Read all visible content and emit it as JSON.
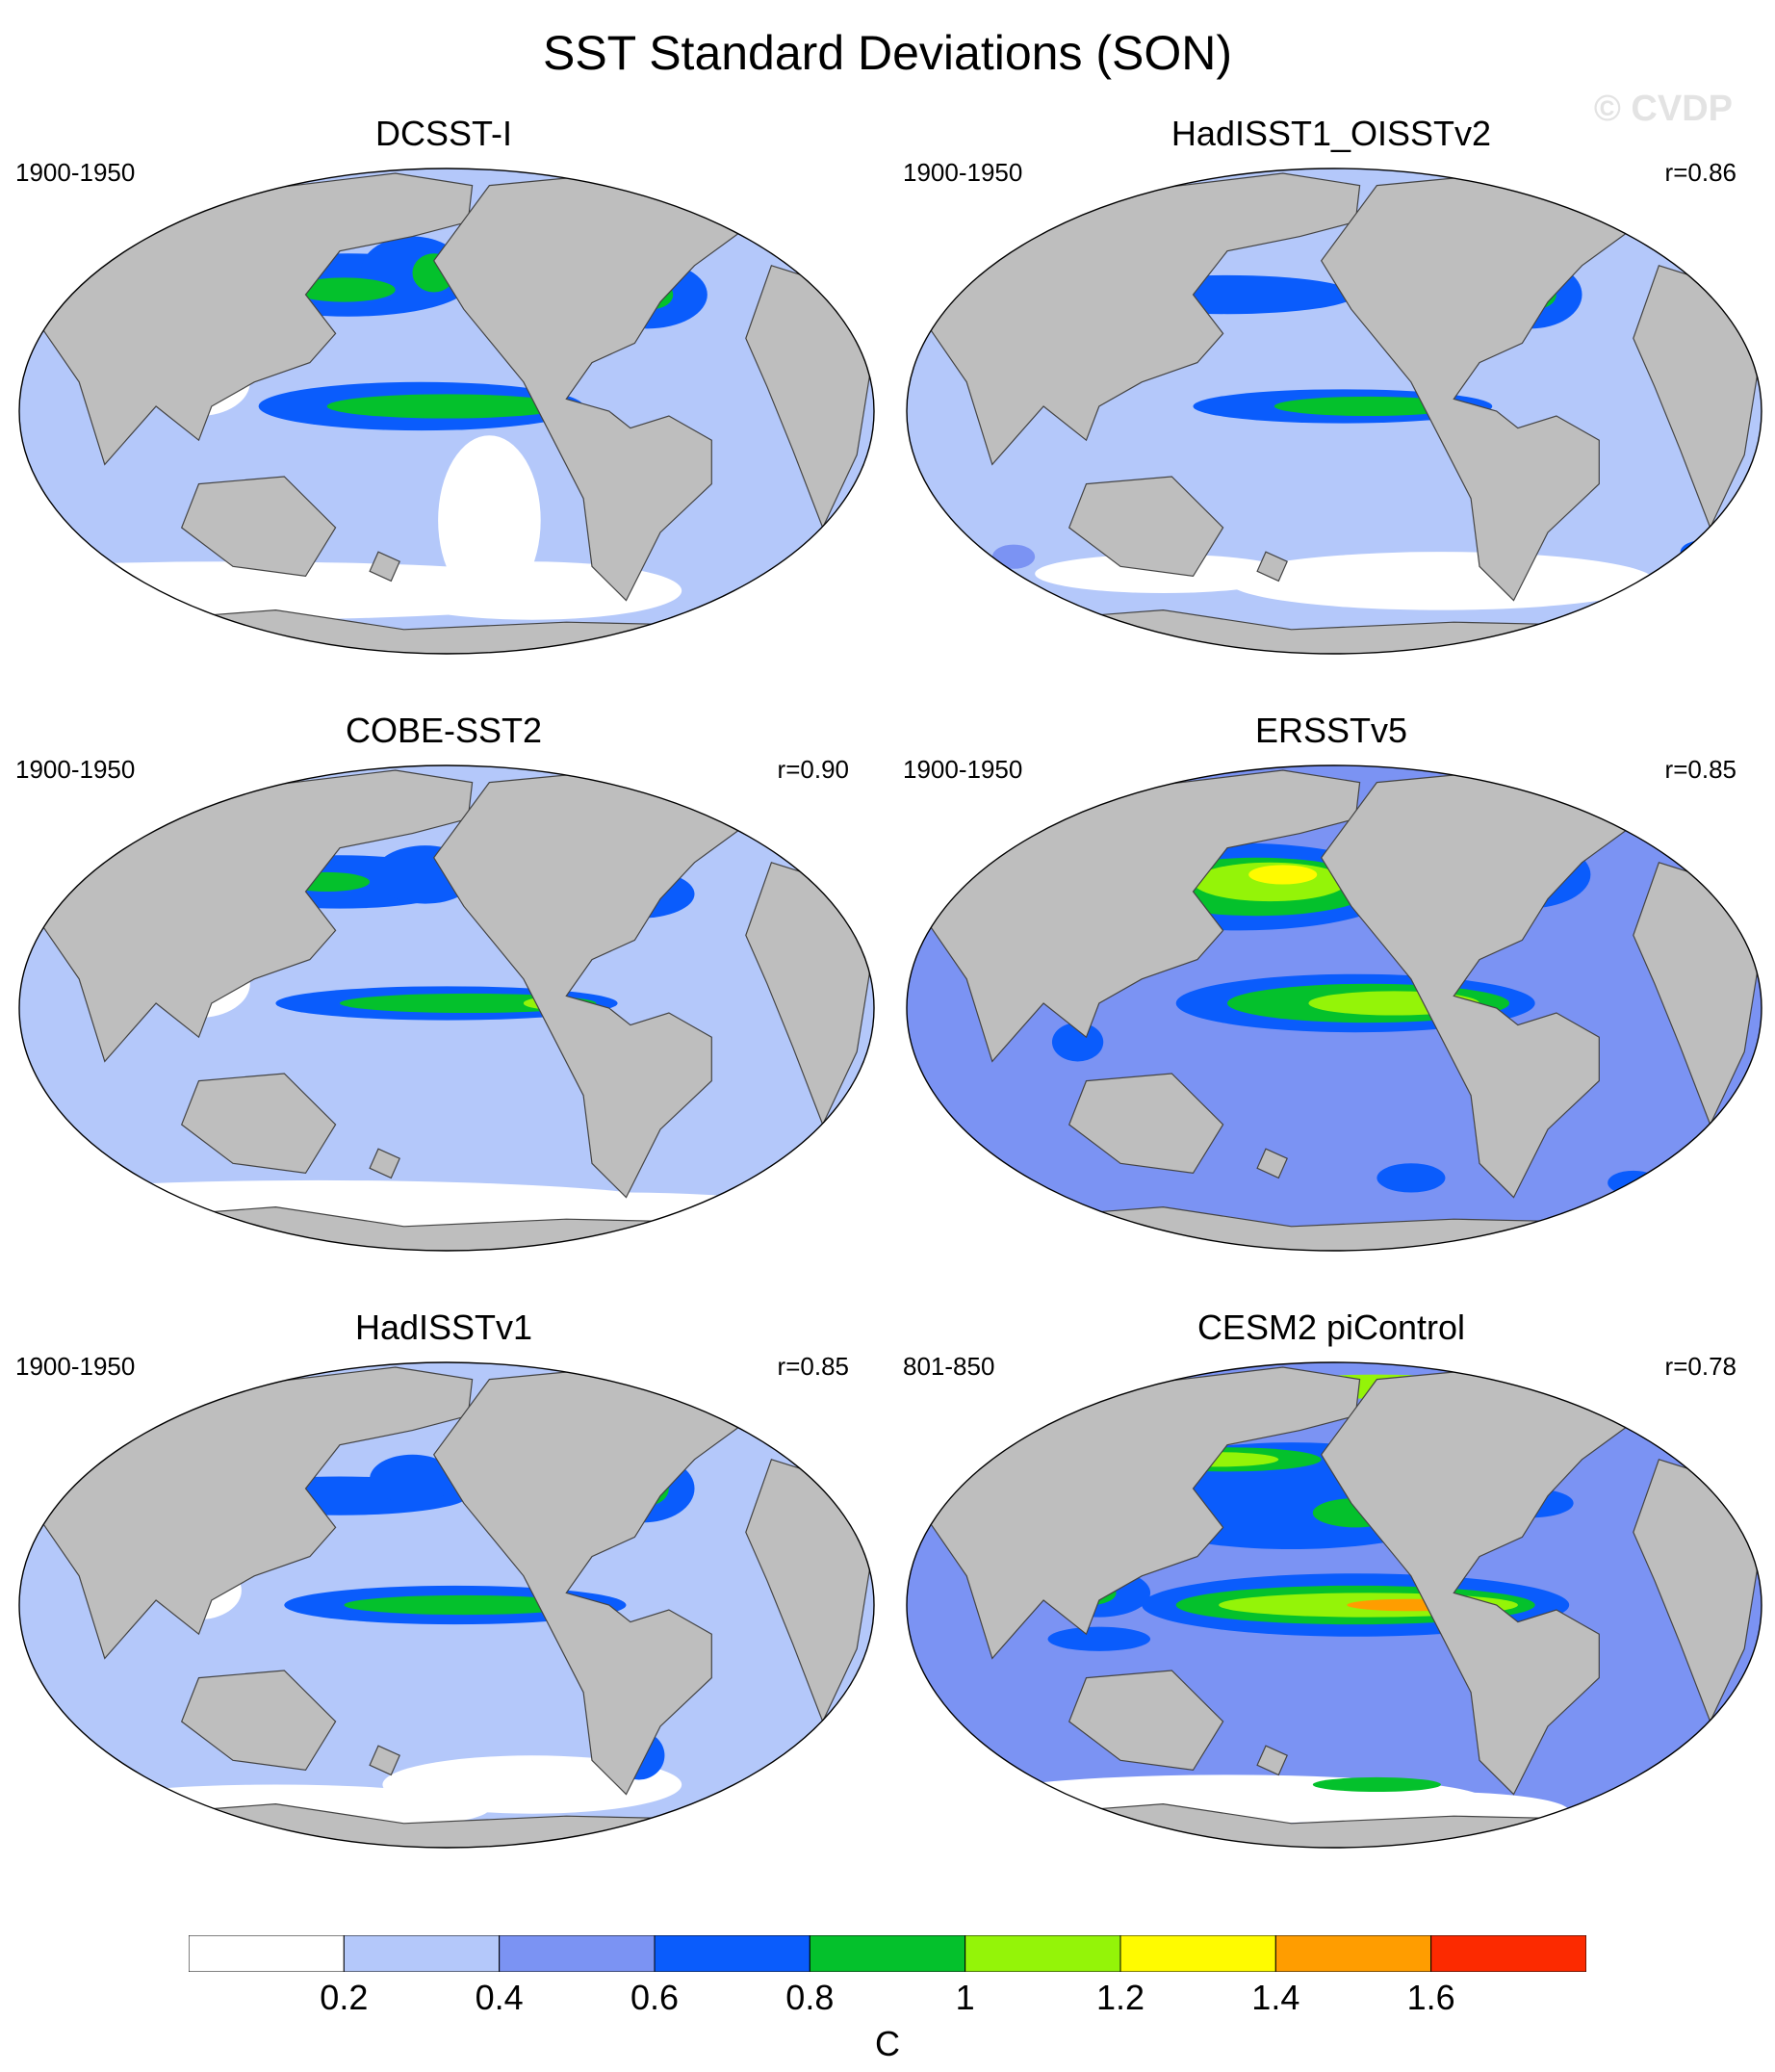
{
  "title": "SST Standard Deviations (SON)",
  "watermark": "© CVDP",
  "panels": [
    {
      "title": "DCSST-I",
      "period": "1900-1950",
      "r": "",
      "pattern": "dcsst"
    },
    {
      "title": "HadISST1_OISSTv2",
      "period": "1900-1950",
      "r": "r=0.86",
      "pattern": "hadoi"
    },
    {
      "title": "COBE-SST2",
      "period": "1900-1950",
      "r": "r=0.90",
      "pattern": "cobe"
    },
    {
      "title": "ERSSTv5",
      "period": "1900-1950",
      "r": "r=0.85",
      "pattern": "ersst"
    },
    {
      "title": "HadISSTv1",
      "period": "1900-1950",
      "r": "r=0.85",
      "pattern": "hadisst"
    },
    {
      "title": "CESM2 piControl",
      "period": "801-850",
      "r": "r=0.78",
      "pattern": "cesm"
    }
  ],
  "colorbar": {
    "colors": [
      "#ffffff",
      "#b4c8fa",
      "#7b93f3",
      "#0a5cfc",
      "#04c12c",
      "#94f408",
      "#fffb00",
      "#ff9d00",
      "#fc2a00"
    ],
    "labels": [
      "0.2",
      "0.4",
      "0.6",
      "0.8",
      "1",
      "1.2",
      "1.4",
      "1.6"
    ],
    "units": "C"
  },
  "land_color": "#bebebe"
}
